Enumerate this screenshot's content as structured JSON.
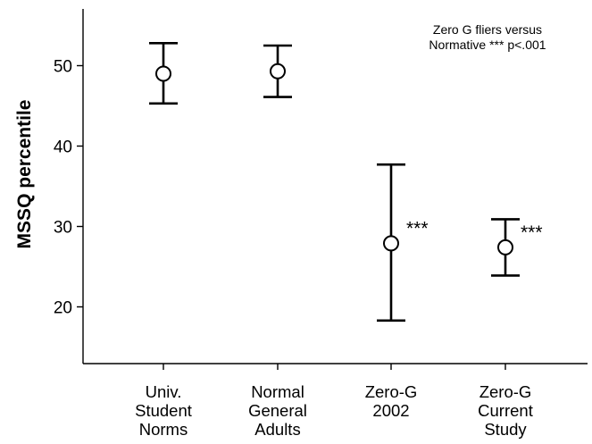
{
  "chart_data": {
    "type": "errorbar",
    "ylabel": "MSSQ percentile",
    "ylim": [
      13,
      57.5
    ],
    "yticks": [
      20,
      30,
      40,
      50
    ],
    "annotation": [
      "Zero G fliers versus",
      "Normative *** p<.001"
    ],
    "categories": [
      {
        "label": [
          "Univ.",
          "Student",
          "Norms"
        ],
        "mean": 49.0,
        "upper": 52.8,
        "lower": 45.3,
        "sig": ""
      },
      {
        "label": [
          "Normal",
          "General",
          "Adults"
        ],
        "mean": 49.3,
        "upper": 52.5,
        "lower": 46.1,
        "sig": ""
      },
      {
        "label": [
          "Zero-G",
          "2002"
        ],
        "mean": 27.9,
        "upper": 37.7,
        "lower": 18.3,
        "sig": "***"
      },
      {
        "label": [
          "Zero-G",
          "Current",
          "Study"
        ],
        "mean": 27.4,
        "upper": 30.9,
        "lower": 23.9,
        "sig": "***"
      }
    ]
  }
}
